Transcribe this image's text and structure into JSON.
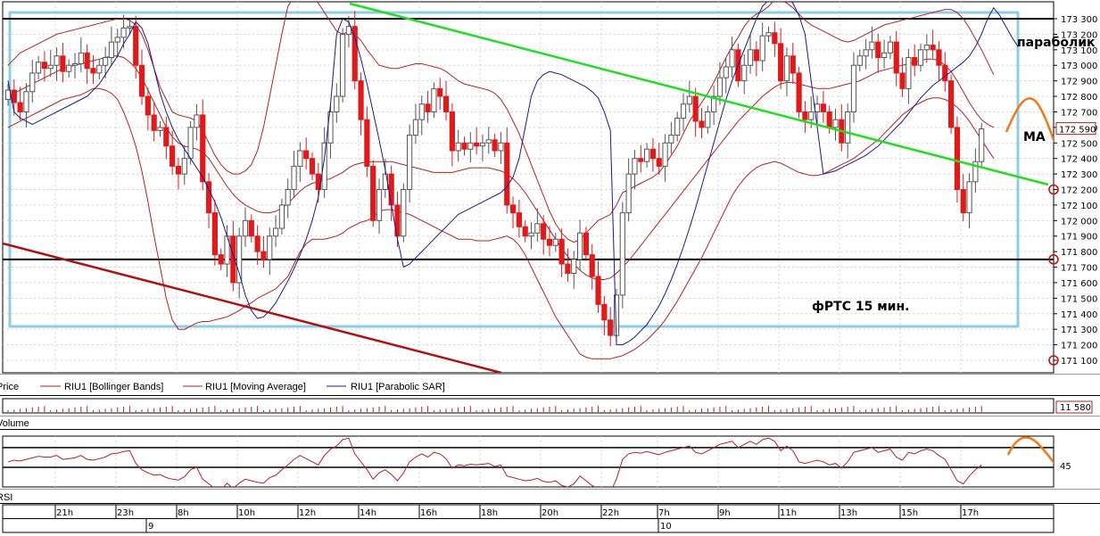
{
  "panels": {
    "price_label": "Price",
    "volume_label": "Volume",
    "rsi_label": "RSI",
    "legend": [
      {
        "label": "RIU1 [Bollinger Bands]",
        "color": "#b22222"
      },
      {
        "label": "RIU1 [Moving Average]",
        "color": "#b22222"
      },
      {
        "label": "RIU1 [Parabolic SAR]",
        "color": "#1a1a8c"
      }
    ],
    "last_price_label": "172 590",
    "volume_value_label": "11 580",
    "rsi_level_label": "45"
  },
  "annotations": {
    "parabolic": "параболик",
    "ma": "MA",
    "title": "фРТС   15 мин."
  },
  "chart_data": {
    "type": "candlestick",
    "y_ticks": [
      "173 300",
      "173 200",
      "173 100",
      "173 000",
      "172 900",
      "172 800",
      "172 700",
      "172 600",
      "172 500",
      "172 400",
      "172 300",
      "172 200",
      "172 100",
      "172 000",
      "171 900",
      "171 800",
      "171 700",
      "171 600",
      "171 500",
      "171 400",
      "171 300",
      "171 200",
      "171 100"
    ],
    "ylim": [
      171050,
      173370
    ],
    "x_ticks": [
      "21h",
      "23h",
      "8h",
      "10h",
      "12h",
      "14h",
      "16h",
      "18h",
      "20h",
      "22h",
      "7h",
      "9h",
      "11h",
      "13h",
      "15h",
      "17h"
    ],
    "date_labels": [
      "9",
      "10"
    ],
    "horizontal_levels": [
      173300,
      171750
    ],
    "marked_levels": [
      172200,
      171750,
      171100
    ],
    "last_price": 172590,
    "colors": {
      "up": "#ffffff",
      "down": "#e0191b",
      "bollinger": "#b22222",
      "sar": "#1a1a8c",
      "trend_green": "#22dd22",
      "trend_red": "#b01010",
      "forecast": "#f07818",
      "box": "#8ecde3"
    },
    "close": [
      172840,
      172760,
      172700,
      172830,
      172950,
      173020,
      172980,
      173000,
      173060,
      172960,
      173000,
      173010,
      173080,
      172980,
      172950,
      173000,
      173050,
      173150,
      173180,
      173240,
      173250,
      173000,
      172800,
      172680,
      172580,
      172600,
      172480,
      172350,
      172300,
      172400,
      172600,
      172680,
      172250,
      172050,
      171780,
      171720,
      171900,
      171600,
      171900,
      172000,
      171900,
      171800,
      171750,
      171900,
      171950,
      172100,
      172200,
      172350,
      172450,
      172400,
      172300,
      172200,
      172500,
      172700,
      172800,
      173200,
      173250,
      172900,
      172650,
      172350,
      172000,
      172200,
      172300,
      172100,
      171900,
      172200,
      172550,
      172650,
      172750,
      172700,
      172850,
      172800,
      172700,
      172450,
      172500,
      172460,
      172500,
      172480,
      172500,
      172520,
      172450,
      172500,
      172100,
      172050,
      171960,
      171900,
      171920,
      171980,
      171880,
      171840,
      171880,
      171720,
      171660,
      171750,
      171920,
      171780,
      171640,
      171460,
      171360,
      171260,
      171520,
      172050,
      172300,
      172400,
      172380,
      172460,
      172400,
      172350,
      172500,
      172550,
      172660,
      172750,
      172800,
      172640,
      172600,
      172700,
      172800,
      172920,
      172990,
      173100,
      172900,
      173000,
      173100,
      173030,
      173190,
      173210,
      173140,
      172900,
      173060,
      172950,
      172700,
      172650,
      172700,
      172750,
      172700,
      172600,
      172650,
      172500,
      172700,
      173000,
      173060,
      173100,
      173150,
      173050,
      173080,
      173150,
      172950,
      172850,
      173050,
      173000,
      173100,
      173130,
      173100,
      173000,
      172900,
      172600,
      172200,
      172050,
      172250,
      172380,
      172590
    ],
    "bb_upper": [
      173000,
      173040,
      173080,
      173100,
      173120,
      173140,
      173160,
      173180,
      173200,
      173210,
      173220,
      173230,
      173240,
      173250,
      173260,
      173270,
      173280,
      173290,
      173300,
      173300,
      173290,
      173260,
      173200,
      173100,
      172980,
      172860,
      172780,
      172700,
      172680,
      172670,
      172660,
      172640,
      172580,
      172500,
      172420,
      172360,
      172320,
      172300,
      172300,
      172320,
      172360,
      172450,
      172600,
      172800,
      173000,
      173200,
      173380,
      173440,
      173460,
      173460,
      173440,
      173400,
      173340,
      173280,
      173220,
      173200,
      173220,
      173200,
      173160,
      173100,
      173050,
      173000,
      172990,
      172980,
      172980,
      172990,
      173000,
      173010,
      173010,
      173000,
      172990,
      172980,
      172960,
      172930,
      172900,
      172880,
      172870,
      172860,
      172850,
      172840,
      172820,
      172780,
      172720,
      172640,
      172560,
      172460,
      172360,
      172260,
      172160,
      172060,
      171980,
      171920,
      171880,
      171860,
      171880,
      171920,
      171960,
      172000,
      172020,
      172040,
      172100,
      172180,
      172200,
      172220,
      172240,
      172260,
      172280,
      172310,
      172360,
      172420,
      172480,
      172560,
      172640,
      172700,
      172760,
      172820,
      172890,
      172970,
      173050,
      173120,
      173180,
      173250,
      173300,
      173330,
      173350,
      173380,
      173420,
      173420,
      173400,
      173370,
      173330,
      173290,
      173260,
      173240,
      173220,
      173200,
      173180,
      173160,
      173150,
      173160,
      173180,
      173200,
      173220,
      173240,
      173260,
      173270,
      173280,
      173290,
      173300,
      173310,
      173320,
      173330,
      173340,
      173350,
      173360,
      173360,
      173340,
      173300,
      173240,
      173170,
      173100,
      173020,
      172940
    ],
    "bb_lower": [
      172600,
      172620,
      172640,
      172660,
      172680,
      172700,
      172720,
      172740,
      172760,
      172780,
      172790,
      172800,
      172810,
      172830,
      172850,
      172850,
      172840,
      172820,
      172780,
      172700,
      172600,
      172480,
      172320,
      172120,
      171900,
      171700,
      171500,
      171360,
      171300,
      171300,
      171320,
      171340,
      171350,
      171350,
      171360,
      171370,
      171380,
      171400,
      171420,
      171450,
      171470,
      171500,
      171520,
      171540,
      171560,
      171600,
      171640,
      171720,
      171800,
      171850,
      171880,
      171880,
      171880,
      171890,
      171900,
      171920,
      171950,
      171970,
      171990,
      172000,
      172020,
      172060,
      172070,
      172070,
      172060,
      172050,
      172040,
      172020,
      172000,
      171980,
      171960,
      171940,
      171920,
      171900,
      171880,
      171880,
      171880,
      171870,
      171870,
      171870,
      171880,
      171890,
      171900,
      171880,
      171840,
      171780,
      171700,
      171620,
      171540,
      171460,
      171380,
      171320,
      171260,
      171200,
      171140,
      171120,
      171110,
      171110,
      171110,
      171110,
      171120,
      171130,
      171150,
      171170,
      171200,
      171230,
      171270,
      171310,
      171360,
      171420,
      171480,
      171550,
      171620,
      171690,
      171760,
      171840,
      171920,
      172000,
      172080,
      172160,
      172220,
      172270,
      172310,
      172340,
      172360,
      172370,
      172380,
      172370,
      172350,
      172330,
      172310,
      172300,
      172290,
      172290,
      172300,
      172320,
      172340,
      172360,
      172380,
      172400,
      172430,
      172460,
      172490,
      172520,
      172560,
      172600,
      172640,
      172680,
      172710,
      172740,
      172760,
      172780,
      172790,
      172790,
      172780,
      172760,
      172730,
      172690,
      172640,
      172580,
      172520,
      172460,
      172400
    ],
    "ma": [
      172800,
      172820,
      172840,
      172860,
      172880,
      172900,
      172920,
      172940,
      172960,
      172980,
      172990,
      173000,
      173010,
      173020,
      173030,
      173040,
      173050,
      173060,
      173060,
      173050,
      173020,
      172980,
      172920,
      172840,
      172760,
      172680,
      172600,
      172540,
      172500,
      172480,
      172470,
      172460,
      172440,
      172400,
      172340,
      172280,
      172220,
      172170,
      172130,
      172100,
      172080,
      172060,
      172050,
      172050,
      172060,
      172080,
      172110,
      172150,
      172190,
      172220,
      172240,
      172250,
      172260,
      172270,
      172290,
      172310,
      172340,
      172360,
      172370,
      172380,
      172380,
      172380,
      172380,
      172380,
      172370,
      172360,
      172350,
      172340,
      172330,
      172320,
      172310,
      172310,
      172310,
      172310,
      172320,
      172330,
      172340,
      172340,
      172340,
      172340,
      172330,
      172320,
      172300,
      172270,
      172230,
      172180,
      172120,
      172060,
      172000,
      171940,
      171880,
      171820,
      171770,
      171720,
      171680,
      171650,
      171630,
      171620,
      171620,
      171630,
      171660,
      171700,
      171740,
      171790,
      171840,
      171890,
      171940,
      171990,
      172040,
      172090,
      172140,
      172190,
      172240,
      172290,
      172340,
      172390,
      172440,
      172490,
      172540,
      172590,
      172640,
      172680,
      172720,
      172760,
      172800,
      172830,
      172860,
      172880,
      172890,
      172890,
      172880,
      172870,
      172860,
      172850,
      172850,
      172850,
      172860,
      172870,
      172880,
      172890,
      172900,
      172920,
      172940,
      172960,
      172970,
      172980,
      172990,
      173000,
      173010,
      173020,
      173030,
      173040,
      173040,
      173030,
      173000,
      172960,
      172900,
      172830,
      172760,
      172700,
      172650,
      172620,
      172600
    ],
    "sar": [
      172900,
      172700,
      172660,
      172640,
      172620,
      172640,
      172660,
      172680,
      172700,
      172720,
      172740,
      172760,
      172780,
      172800,
      172840,
      172880,
      172940,
      173000,
      173060,
      173140,
      173200,
      173280,
      173240,
      173140,
      172980,
      172820,
      172700,
      172600,
      172520,
      172460,
      172400,
      172340,
      172280,
      172200,
      172120,
      172020,
      171900,
      171780,
      171660,
      171520,
      171420,
      171370,
      171380,
      171420,
      171470,
      171540,
      171610,
      171690,
      171780,
      171880,
      172000,
      172150,
      172400,
      172750,
      173200,
      173300,
      173280,
      173180,
      173040,
      172880,
      172700,
      172520,
      172330,
      172100,
      171880,
      171700,
      171720,
      171760,
      171800,
      171840,
      171880,
      171920,
      171960,
      172000,
      172040,
      172060,
      172080,
      172100,
      172120,
      172140,
      172160,
      172180,
      172220,
      172280,
      172400,
      172600,
      172800,
      172900,
      172940,
      172960,
      172950,
      172940,
      172920,
      172900,
      172880,
      172860,
      172830,
      172790,
      172700,
      172580,
      171200,
      171200,
      171220,
      171250,
      171290,
      171330,
      171390,
      171450,
      171530,
      171620,
      171720,
      171830,
      171950,
      172080,
      172220,
      172360,
      172500,
      172640,
      172780,
      172900,
      173000,
      173100,
      173200,
      173300,
      173380,
      173420,
      173450,
      173460,
      173440,
      173400,
      173320,
      173200,
      172900,
      172600,
      172300,
      172310,
      172320,
      172340,
      172360,
      172380,
      172400,
      172420,
      172450,
      172480,
      172520,
      172560,
      172600,
      172640,
      172690,
      172740,
      172790,
      172830,
      172870,
      172900,
      172930,
      172960,
      172990,
      173020,
      173060,
      173120,
      173200,
      173300,
      173370,
      173320,
      173250,
      173180,
      173120
    ],
    "rsi": [
      52,
      54,
      53,
      55,
      57,
      59,
      58,
      58,
      60,
      55,
      56,
      57,
      60,
      55,
      54,
      56,
      58,
      62,
      63,
      65,
      66,
      50,
      42,
      38,
      35,
      36,
      32,
      30,
      29,
      33,
      42,
      45,
      30,
      24,
      18,
      16,
      25,
      18,
      25,
      30,
      28,
      26,
      25,
      32,
      35,
      42,
      48,
      55,
      60,
      56,
      52,
      48,
      60,
      68,
      72,
      80,
      82,
      62,
      52,
      42,
      30,
      38,
      42,
      36,
      28,
      38,
      52,
      58,
      62,
      58,
      64,
      62,
      56,
      44,
      48,
      47,
      49,
      48,
      49,
      50,
      46,
      48,
      34,
      32,
      30,
      28,
      29,
      31,
      27,
      26,
      28,
      22,
      20,
      24,
      34,
      28,
      22,
      18,
      16,
      14,
      30,
      55,
      62,
      64,
      63,
      65,
      63,
      61,
      64,
      66,
      68,
      70,
      72,
      64,
      62,
      66,
      70,
      74,
      76,
      78,
      70,
      74,
      78,
      74,
      80,
      82,
      78,
      66,
      72,
      66,
      52,
      50,
      52,
      54,
      52,
      48,
      50,
      44,
      52,
      64,
      66,
      68,
      70,
      64,
      66,
      68,
      58,
      54,
      64,
      62,
      66,
      68,
      66,
      60,
      55,
      42,
      28,
      24,
      34,
      42,
      48
    ]
  }
}
